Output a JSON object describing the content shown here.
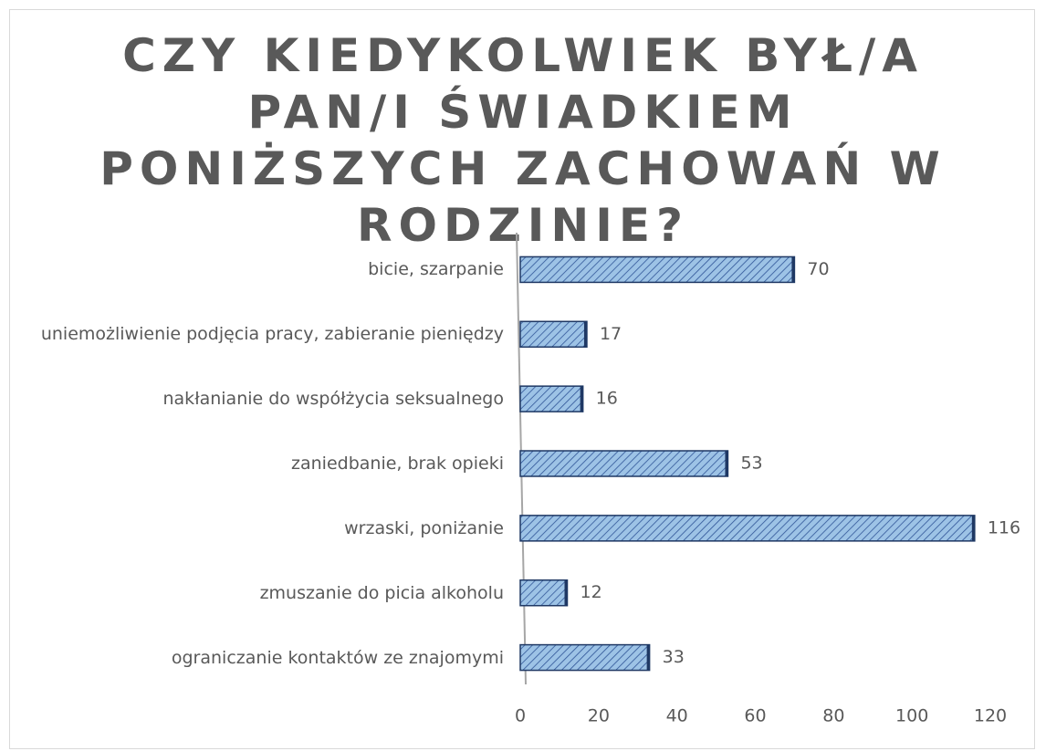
{
  "chart_data": {
    "type": "bar",
    "orientation": "horizontal",
    "title": "CZY KIEDYKOLWIEK BYŁ/A PAN/I ŚWIADKIEM PONIŻSZYCH ZACHOWAŃ W RODZINIE?",
    "categories": [
      "bicie, szarpanie",
      "uniemożliwienie podjęcia pracy, zabieranie pieniędzy",
      "nakłanianie do współżycia seksualnego",
      "zaniedbanie, brak opieki",
      "wrzaski, poniżanie",
      "zmuszanie do picia alkoholu",
      "ograniczanie kontaktów ze znajomymi"
    ],
    "values": [
      70,
      17,
      16,
      53,
      116,
      12,
      33
    ],
    "color": "#9dc3e6",
    "xlim": [
      0,
      120
    ],
    "xticks": [
      0,
      20,
      40,
      60,
      80,
      100,
      120
    ]
  }
}
